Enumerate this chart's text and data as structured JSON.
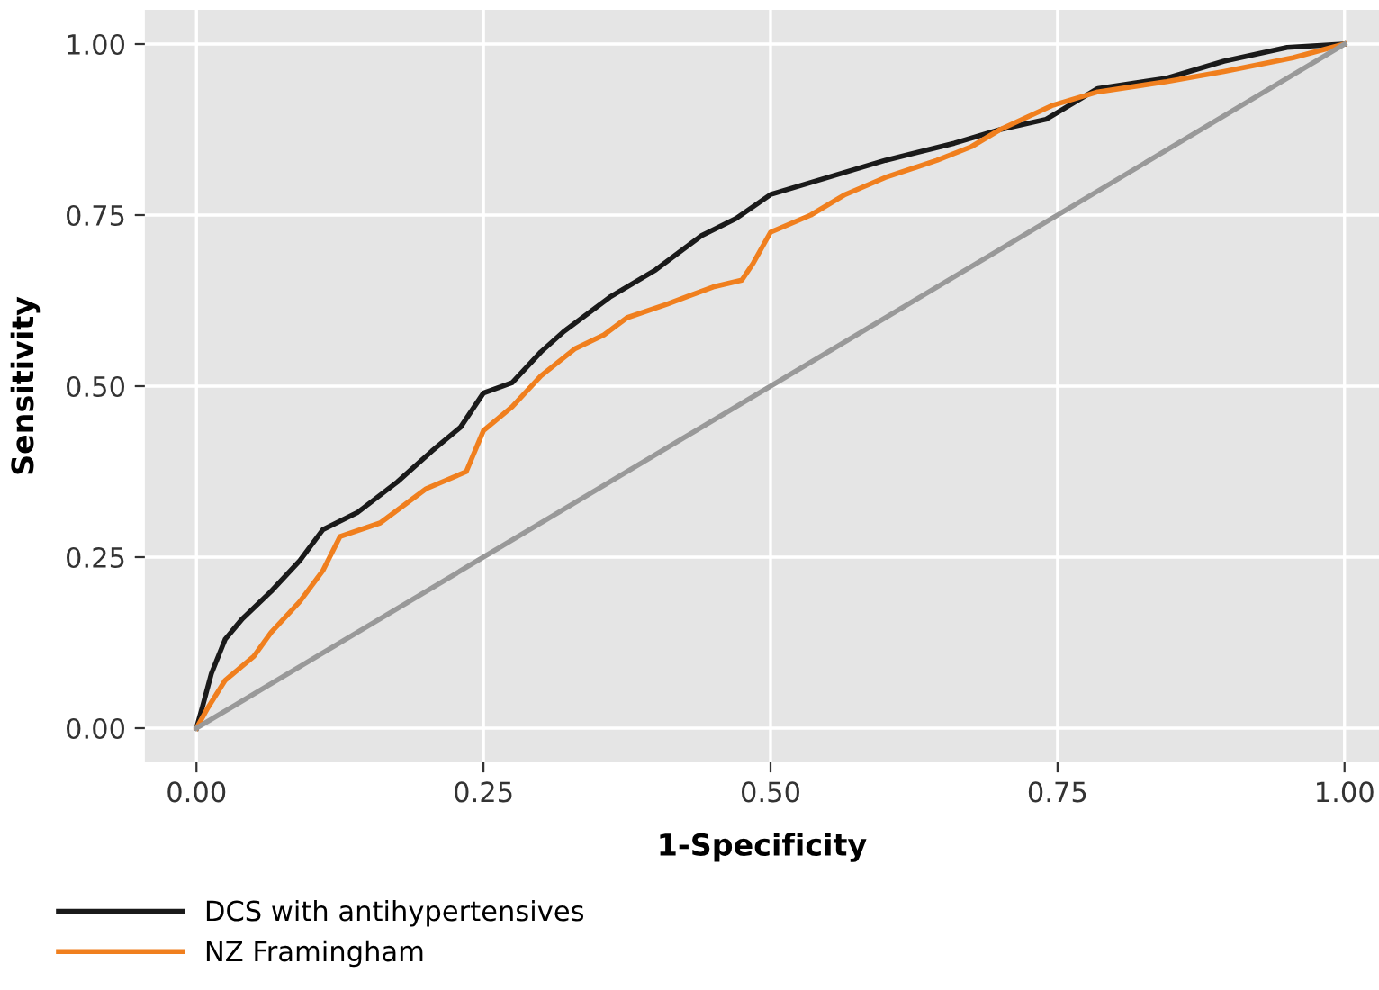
{
  "chart_data": {
    "type": "line",
    "xlabel": "1-Specificity",
    "ylabel": "Sensitivity",
    "xlim": [
      -0.045,
      1.03
    ],
    "ylim": [
      -0.05,
      1.05
    ],
    "xticks": [
      {
        "value": 0,
        "label": "0.00"
      },
      {
        "value": 0.25,
        "label": "0.25"
      },
      {
        "value": 0.5,
        "label": "0.50"
      },
      {
        "value": 0.75,
        "label": "0.75"
      },
      {
        "value": 1,
        "label": "1.00"
      }
    ],
    "yticks": [
      {
        "value": 0,
        "label": "0.00"
      },
      {
        "value": 0.25,
        "label": "0.25"
      },
      {
        "value": 0.5,
        "label": "0.50"
      },
      {
        "value": 0.75,
        "label": "0.75"
      },
      {
        "value": 1,
        "label": "1.00"
      }
    ],
    "grid": true,
    "legend": "bottom left",
    "series": [
      {
        "name": "DCS with antihypertensives",
        "color": "#1a1a1a",
        "x": [
          0,
          0.005,
          0.013,
          0.025,
          0.04,
          0.065,
          0.09,
          0.11,
          0.14,
          0.175,
          0.205,
          0.23,
          0.25,
          0.275,
          0.3,
          0.32,
          0.36,
          0.4,
          0.44,
          0.47,
          0.5,
          0.55,
          0.6,
          0.66,
          0.7,
          0.74,
          0.785,
          0.845,
          0.895,
          0.95,
          1
        ],
        "values": [
          0,
          0.03,
          0.08,
          0.13,
          0.16,
          0.2,
          0.245,
          0.29,
          0.315,
          0.36,
          0.405,
          0.44,
          0.49,
          0.505,
          0.55,
          0.58,
          0.63,
          0.67,
          0.72,
          0.745,
          0.78,
          0.805,
          0.83,
          0.855,
          0.875,
          0.89,
          0.935,
          0.95,
          0.975,
          0.995,
          1
        ]
      },
      {
        "name": "NZ Framingham",
        "color": "#f07f1e",
        "x": [
          0,
          0.01,
          0.025,
          0.05,
          0.065,
          0.09,
          0.11,
          0.125,
          0.16,
          0.2,
          0.235,
          0.25,
          0.275,
          0.3,
          0.33,
          0.355,
          0.375,
          0.41,
          0.45,
          0.475,
          0.485,
          0.5,
          0.535,
          0.565,
          0.6,
          0.645,
          0.675,
          0.7,
          0.745,
          0.785,
          0.845,
          0.895,
          0.955,
          1
        ],
        "values": [
          0,
          0.03,
          0.07,
          0.105,
          0.14,
          0.185,
          0.23,
          0.28,
          0.3,
          0.35,
          0.375,
          0.435,
          0.47,
          0.515,
          0.555,
          0.575,
          0.6,
          0.62,
          0.645,
          0.655,
          0.68,
          0.725,
          0.75,
          0.78,
          0.805,
          0.83,
          0.85,
          0.875,
          0.91,
          0.93,
          0.945,
          0.96,
          0.98,
          1
        ]
      },
      {
        "type": "line",
        "color": "#999999",
        "x": [
          0,
          1
        ],
        "values": [
          0,
          1
        ]
      }
    ]
  }
}
